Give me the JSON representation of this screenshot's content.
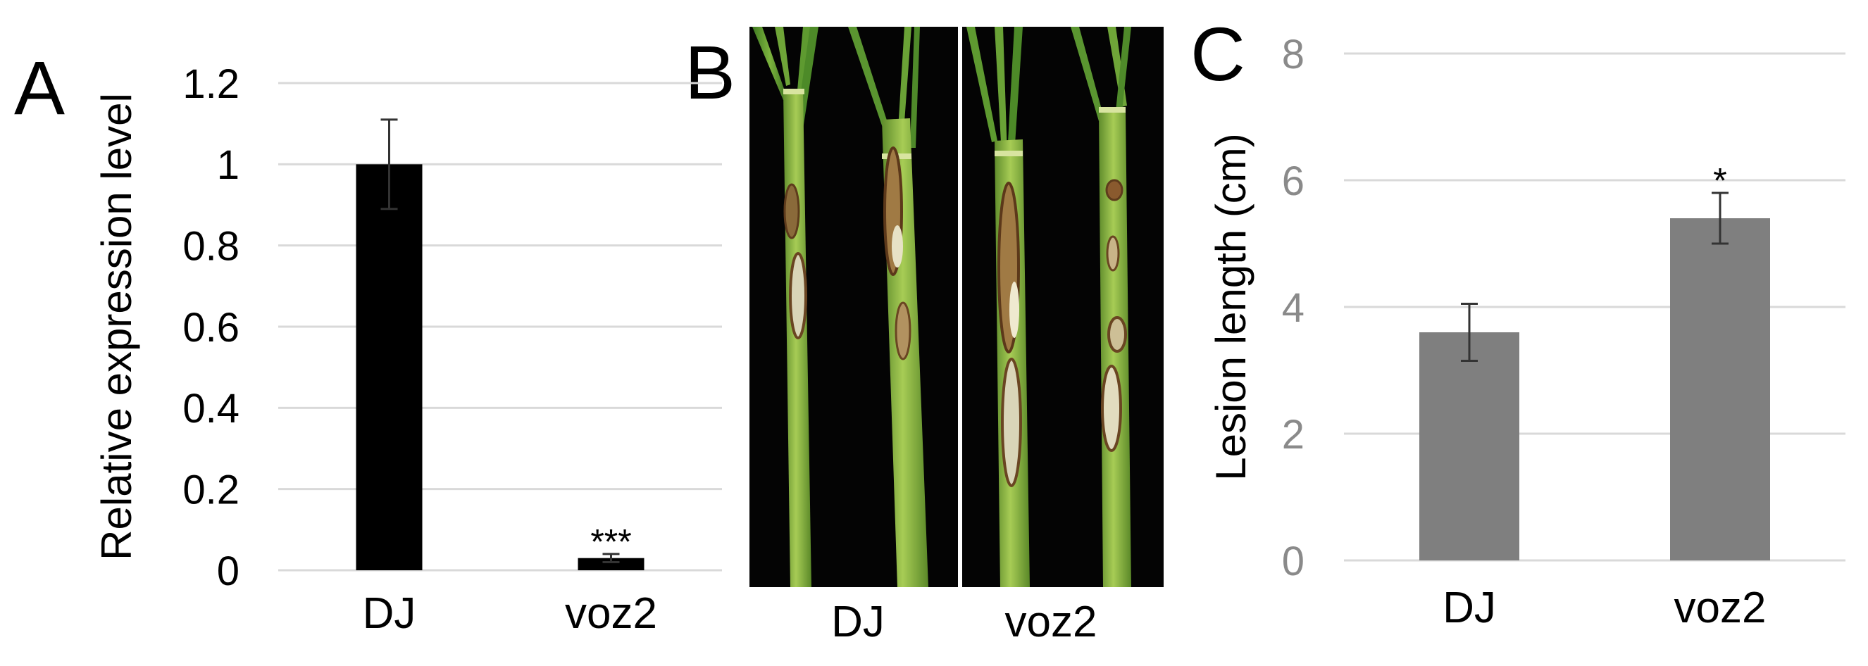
{
  "panels": {
    "a": {
      "letter": "A"
    },
    "b": {
      "letter": "B",
      "photo_labels": [
        "DJ",
        "voz2"
      ]
    },
    "c": {
      "letter": "C"
    }
  },
  "chart_data": [
    {
      "id": "panel-a",
      "type": "bar",
      "categories": [
        "DJ",
        "voz2"
      ],
      "values": [
        1.0,
        0.03
      ],
      "errors": [
        0.11,
        0.01
      ],
      "annotations": [
        "",
        "***"
      ],
      "ylabel": "Relative expression level",
      "xlabel": "",
      "ylim": [
        0,
        1.2
      ],
      "yticks": [
        "0",
        "0.2",
        "0.4",
        "0.6",
        "0.8",
        "1",
        "1.2"
      ],
      "grid": true,
      "bar_color": "#000000",
      "tick_color": "#000000"
    },
    {
      "id": "panel-c",
      "type": "bar",
      "categories": [
        "DJ",
        "voz2"
      ],
      "values": [
        3.6,
        5.4
      ],
      "errors": [
        0.45,
        0.4
      ],
      "annotations": [
        "",
        "*"
      ],
      "ylabel": "Lesion length (cm)",
      "xlabel": "",
      "ylim": [
        0,
        8
      ],
      "yticks": [
        "0",
        "2",
        "4",
        "6",
        "8"
      ],
      "grid": true,
      "bar_color": "#7f7f7f",
      "tick_color": "#8a8a8a"
    }
  ]
}
